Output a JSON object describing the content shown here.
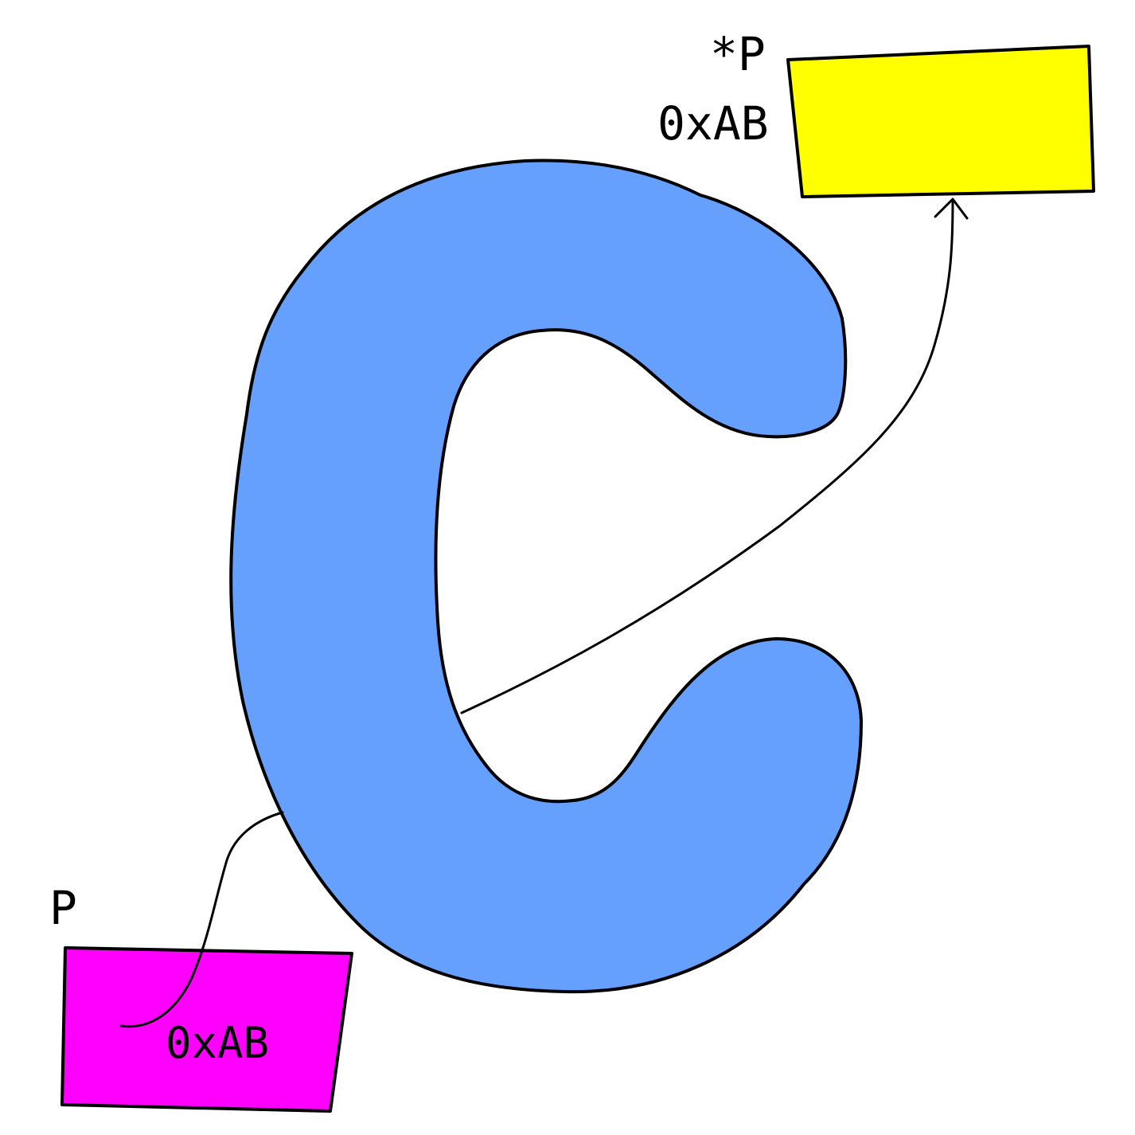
{
  "colors": {
    "background": "#ffffff",
    "outline": "#000000",
    "letter_fill": "#66a0ff",
    "pointer_box_fill": "#ff00ff",
    "target_box_fill": "#ffff00"
  },
  "pointer": {
    "name_label": "P",
    "value_label": "0xAB"
  },
  "target": {
    "deref_label": "*P",
    "address_label": "0xAB"
  },
  "logo": {
    "letter": "C",
    "icon": "c-language-letter"
  }
}
